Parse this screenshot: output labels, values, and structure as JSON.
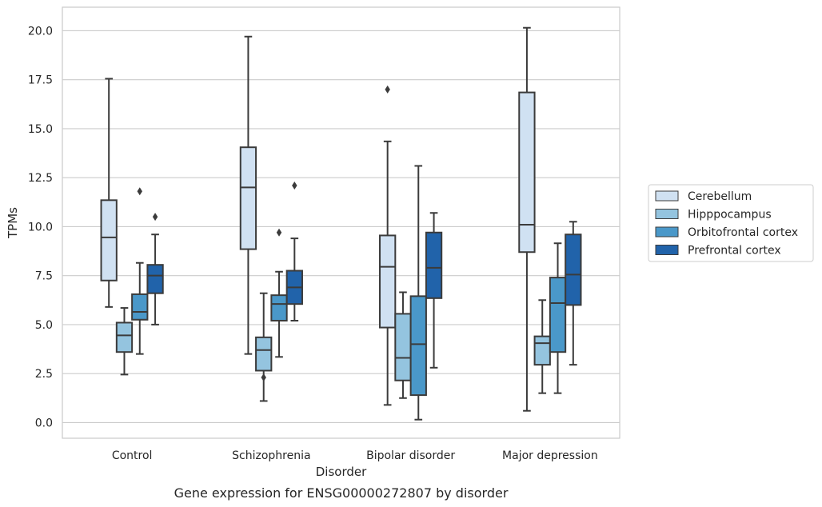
{
  "chart_data": {
    "type": "box",
    "title": "",
    "caption": "Gene expression for ENSG00000272807 by disorder",
    "xlabel": "Disorder",
    "ylabel": "TPMs",
    "ylim": [
      -0.8,
      21.2
    ],
    "yticks": [
      0.0,
      2.5,
      5.0,
      7.5,
      10.0,
      12.5,
      15.0,
      17.5,
      20.0
    ],
    "ytick_labels": [
      "0.0",
      "2.5",
      "5.0",
      "7.5",
      "10.0",
      "12.5",
      "15.0",
      "17.5",
      "20.0"
    ],
    "grid": "horizontal",
    "legend_position": "right",
    "categories": [
      "Control",
      "Schizophrenia",
      "Bipolar disorder",
      "Major depression"
    ],
    "series": [
      {
        "name": "Cerebellum",
        "color": "#d0e1f2",
        "boxes": [
          {
            "whislo": 5.9,
            "q1": 7.25,
            "med": 9.45,
            "q3": 11.35,
            "whishi": 17.55,
            "fliers": []
          },
          {
            "whislo": 3.5,
            "q1": 8.85,
            "med": 12.0,
            "q3": 14.05,
            "whishi": 19.7,
            "fliers": []
          },
          {
            "whislo": 0.9,
            "q1": 4.85,
            "med": 7.95,
            "q3": 9.55,
            "whishi": 14.35,
            "fliers": [
              17.0
            ]
          },
          {
            "whislo": 0.6,
            "q1": 8.7,
            "med": 10.1,
            "q3": 16.85,
            "whishi": 20.15,
            "fliers": []
          }
        ]
      },
      {
        "name": "Hipppocampus",
        "color": "#94c4df",
        "boxes": [
          {
            "whislo": 2.45,
            "q1": 3.6,
            "med": 4.45,
            "q3": 5.1,
            "whishi": 5.85,
            "fliers": []
          },
          {
            "whislo": 1.1,
            "q1": 2.65,
            "med": 3.7,
            "q3": 4.35,
            "whishi": 6.6,
            "fliers": [
              2.3
            ]
          },
          {
            "whislo": 1.25,
            "q1": 2.15,
            "med": 3.3,
            "q3": 5.55,
            "whishi": 6.65,
            "fliers": []
          },
          {
            "whislo": 1.5,
            "q1": 2.95,
            "med": 4.05,
            "q3": 4.4,
            "whishi": 6.25,
            "fliers": []
          }
        ]
      },
      {
        "name": "Orbitofrontal cortex",
        "color": "#4a98c9",
        "boxes": [
          {
            "whislo": 3.5,
            "q1": 5.25,
            "med": 5.65,
            "q3": 6.55,
            "whishi": 8.15,
            "fliers": [
              11.8
            ]
          },
          {
            "whislo": 3.35,
            "q1": 5.2,
            "med": 6.05,
            "q3": 6.5,
            "whishi": 7.7,
            "fliers": [
              9.7
            ]
          },
          {
            "whislo": 0.15,
            "q1": 1.4,
            "med": 4.0,
            "q3": 6.45,
            "whishi": 13.1,
            "fliers": []
          },
          {
            "whislo": 1.5,
            "q1": 3.6,
            "med": 6.1,
            "q3": 7.4,
            "whishi": 9.15,
            "fliers": []
          }
        ]
      },
      {
        "name": "Prefrontal cortex",
        "color": "#2163aa",
        "boxes": [
          {
            "whislo": 5.0,
            "q1": 6.6,
            "med": 7.5,
            "q3": 8.05,
            "whishi": 9.6,
            "fliers": [
              10.5
            ]
          },
          {
            "whislo": 5.2,
            "q1": 6.05,
            "med": 6.9,
            "q3": 7.75,
            "whishi": 9.4,
            "fliers": [
              12.1
            ]
          },
          {
            "whislo": 2.8,
            "q1": 6.35,
            "med": 7.9,
            "q3": 9.7,
            "whishi": 10.7,
            "fliers": []
          },
          {
            "whislo": 2.95,
            "q1": 6.0,
            "med": 7.55,
            "q3": 9.6,
            "whishi": 10.25,
            "fliers": []
          }
        ]
      }
    ]
  }
}
